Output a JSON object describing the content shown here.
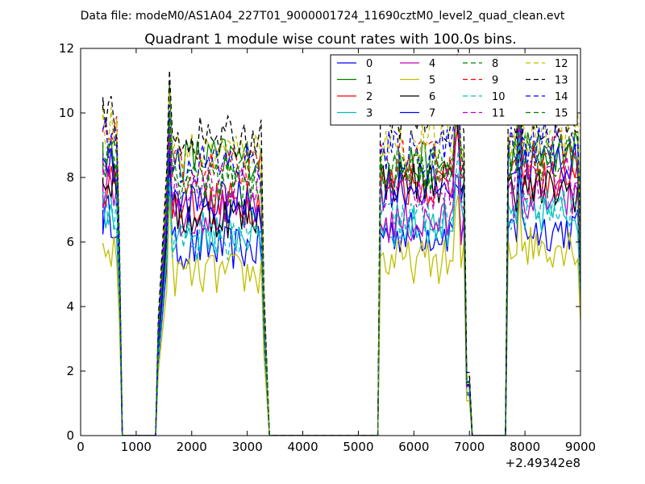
{
  "chart_data": {
    "type": "line",
    "suptitle": "Data file: modeM0/AS1A04_227T01_9000001724_11690cztM0_level2_quad_clean.evt",
    "title": "Quadrant 1 module wise count rates with 100.0s bins.",
    "xlabel": "",
    "ylabel": "",
    "xlim": [
      0,
      9000
    ],
    "ylim": [
      0,
      12
    ],
    "x_offset_label": "+2.49342e8",
    "x_ticks": [
      0,
      1000,
      2000,
      3000,
      4000,
      5000,
      6000,
      7000,
      8000,
      9000
    ],
    "x_tick_labels": [
      "0",
      "1000",
      "2000",
      "3000",
      "4000",
      "5000",
      "6000",
      "7000",
      "8000",
      "9000"
    ],
    "y_ticks": [
      0,
      2,
      4,
      6,
      8,
      10,
      12
    ],
    "y_tick_labels": [
      "0",
      "2",
      "4",
      "6",
      "8",
      "10",
      "12"
    ],
    "grid": false,
    "legend_position": "top-right",
    "legend_columns": 4,
    "segments": [
      {
        "start": 400,
        "end": 700
      },
      {
        "start": 1400,
        "end": 3400
      },
      {
        "start": 5400,
        "end": 7000
      },
      {
        "start": 7700,
        "end": 9000
      }
    ],
    "series": [
      {
        "name": "0",
        "color": "#0000ff",
        "style": "solid",
        "levels": [
          6.8,
          5.8,
          6.3,
          6.4
        ]
      },
      {
        "name": "1",
        "color": "#008000",
        "style": "solid",
        "levels": [
          8.5,
          8.6,
          8.4,
          8.8
        ]
      },
      {
        "name": "2",
        "color": "#ff0000",
        "style": "solid",
        "levels": [
          7.8,
          7.2,
          7.8,
          7.9
        ]
      },
      {
        "name": "3",
        "color": "#00bfbf",
        "style": "solid",
        "levels": [
          6.9,
          6.3,
          6.5,
          6.9
        ]
      },
      {
        "name": "4",
        "color": "#bf00bf",
        "style": "solid",
        "levels": [
          7.7,
          6.9,
          6.6,
          7.3
        ]
      },
      {
        "name": "5",
        "color": "#bfbf00",
        "style": "solid",
        "levels": [
          5.7,
          5.0,
          5.4,
          5.9
        ]
      },
      {
        "name": "6",
        "color": "#000000",
        "style": "solid",
        "levels": [
          7.8,
          6.8,
          7.9,
          7.6
        ]
      },
      {
        "name": "7",
        "color": "#0000ff",
        "style": "solid",
        "levels": [
          8.3,
          7.2,
          7.7,
          8.5
        ]
      },
      {
        "name": "8",
        "color": "#008000",
        "style": "dashed",
        "levels": [
          8.8,
          7.7,
          8.3,
          8.6
        ]
      },
      {
        "name": "9",
        "color": "#ff0000",
        "style": "dashed",
        "levels": [
          9.2,
          8.2,
          8.5,
          8.8
        ]
      },
      {
        "name": "10",
        "color": "#00bfbf",
        "style": "dashed",
        "levels": [
          7.0,
          6.1,
          6.7,
          7.0
        ]
      },
      {
        "name": "11",
        "color": "#bf00bf",
        "style": "dashed",
        "levels": [
          8.6,
          7.7,
          7.6,
          8.0
        ]
      },
      {
        "name": "12",
        "color": "#bfbf00",
        "style": "dashed",
        "levels": [
          9.6,
          8.8,
          9.1,
          9.3
        ]
      },
      {
        "name": "13",
        "color": "#000000",
        "style": "dashed",
        "levels": [
          9.9,
          9.2,
          9.8,
          9.7
        ]
      },
      {
        "name": "14",
        "color": "#0000ff",
        "style": "dashed",
        "levels": [
          9.3,
          8.4,
          8.8,
          9.1
        ]
      },
      {
        "name": "15",
        "color": "#008000",
        "style": "dashed",
        "levels": [
          8.9,
          8.0,
          8.2,
          8.6
        ]
      }
    ]
  }
}
